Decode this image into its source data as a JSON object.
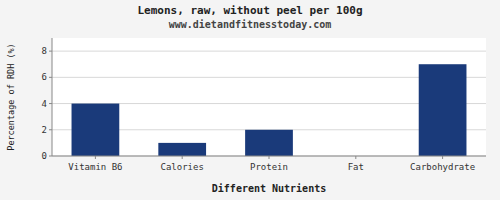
{
  "chart_data": {
    "type": "bar",
    "title": "Lemons, raw, without peel per 100g",
    "subtitle": "www.dietandfitnesstoday.com",
    "xlabel": "Different Nutrients",
    "ylabel": "Percentage of RDH (%)",
    "categories": [
      "Vitamin B6",
      "Calories",
      "Protein",
      "Fat",
      "Carbohydrate"
    ],
    "values": [
      4,
      1,
      2,
      0,
      7
    ],
    "color": "#1a3a7a",
    "ylim": [
      0,
      9
    ],
    "yticks": [
      0,
      2,
      4,
      6,
      8
    ],
    "grid": true
  }
}
